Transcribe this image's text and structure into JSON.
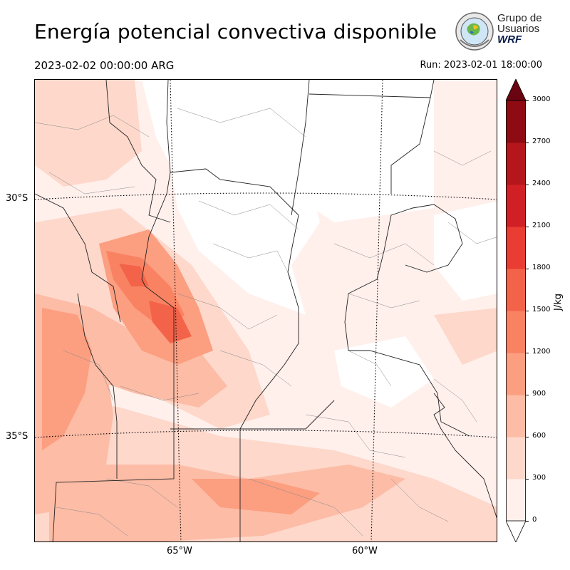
{
  "header": {
    "title": "Energía potencial convectiva disponible",
    "valid_time": "2023-02-02 00:00:00 ARG",
    "run_time": "Run: 2023-02-01 18:00:00"
  },
  "logo": {
    "line1": "Grupo de",
    "line2": "Usuarios",
    "line3": "WRF"
  },
  "map": {
    "lat_labels": [
      "30°S",
      "35°S"
    ],
    "lon_labels": [
      "65°W",
      "60°W"
    ]
  },
  "colorbar": {
    "unit": "J/kg",
    "ticks": [
      "0",
      "300",
      "600",
      "900",
      "1200",
      "1500",
      "1800",
      "2100",
      "2400",
      "2700",
      "3000"
    ],
    "colors": [
      "#fff0ec",
      "#fdd8cb",
      "#fcbca6",
      "#fc9e80",
      "#f98262",
      "#f3634a",
      "#e93c32",
      "#d12025",
      "#b4161b",
      "#8e0b14",
      "#6a0410"
    ]
  }
}
